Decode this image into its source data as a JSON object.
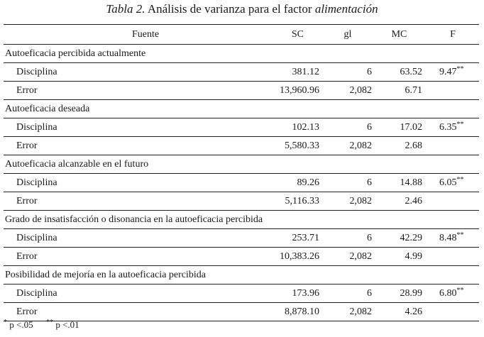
{
  "caption": {
    "label": "Tabla 2.",
    "title": "Análisis de varianza para el factor",
    "factor": "alimentación"
  },
  "columns": {
    "fuente": "Fuente",
    "sc": "SC",
    "gl": "gl",
    "mc": "MC",
    "f": "F"
  },
  "groups": [
    {
      "title": "Autoeficacia percibida actualmente",
      "rows": [
        {
          "source": "Disciplina",
          "sc": "381.12",
          "gl": "6",
          "mc": "63.52",
          "f": "9.47",
          "sig": "**"
        },
        {
          "source": "Error",
          "sc": "13,960.96",
          "gl": "2,082",
          "mc": "6.71",
          "f": "",
          "sig": ""
        }
      ]
    },
    {
      "title": "Autoeficacia deseada",
      "rows": [
        {
          "source": "Disciplina",
          "sc": "102.13",
          "gl": "6",
          "mc": "17.02",
          "f": "6.35",
          "sig": "**"
        },
        {
          "source": "Error",
          "sc": "5,580.33",
          "gl": "2,082",
          "mc": "2.68",
          "f": "",
          "sig": ""
        }
      ]
    },
    {
      "title": "Autoeficacia alcanzable en el futuro",
      "rows": [
        {
          "source": "Disciplina",
          "sc": "89.26",
          "gl": "6",
          "mc": "14.88",
          "f": "6.05",
          "sig": "**"
        },
        {
          "source": "Error",
          "sc": "5,116.33",
          "gl": "2,082",
          "mc": "2.46",
          "f": "",
          "sig": ""
        }
      ]
    },
    {
      "title": "Grado de insatisfacción o disonancia en la autoeficacia percibida",
      "rows": [
        {
          "source": "Disciplina",
          "sc": "253.71",
          "gl": "6",
          "mc": "42.29",
          "f": "8.48",
          "sig": "**"
        },
        {
          "source": "Error",
          "sc": "10,383.26",
          "gl": "2,082",
          "mc": "4.99",
          "f": "",
          "sig": ""
        }
      ]
    },
    {
      "title": "Posibilidad de mejoría en la autoeficacia percibida",
      "rows": [
        {
          "source": "Disciplina",
          "sc": "173.96",
          "gl": "6",
          "mc": "28.99",
          "f": "6.80",
          "sig": "**"
        },
        {
          "source": "Error",
          "sc": "8,878.10",
          "gl": "2,082",
          "mc": "4.26",
          "f": "",
          "sig": ""
        }
      ]
    }
  ],
  "notes": {
    "n1_mark": "*",
    "n1_text": "p <.05",
    "n2_mark": "**",
    "n2_text": "p <.01"
  }
}
